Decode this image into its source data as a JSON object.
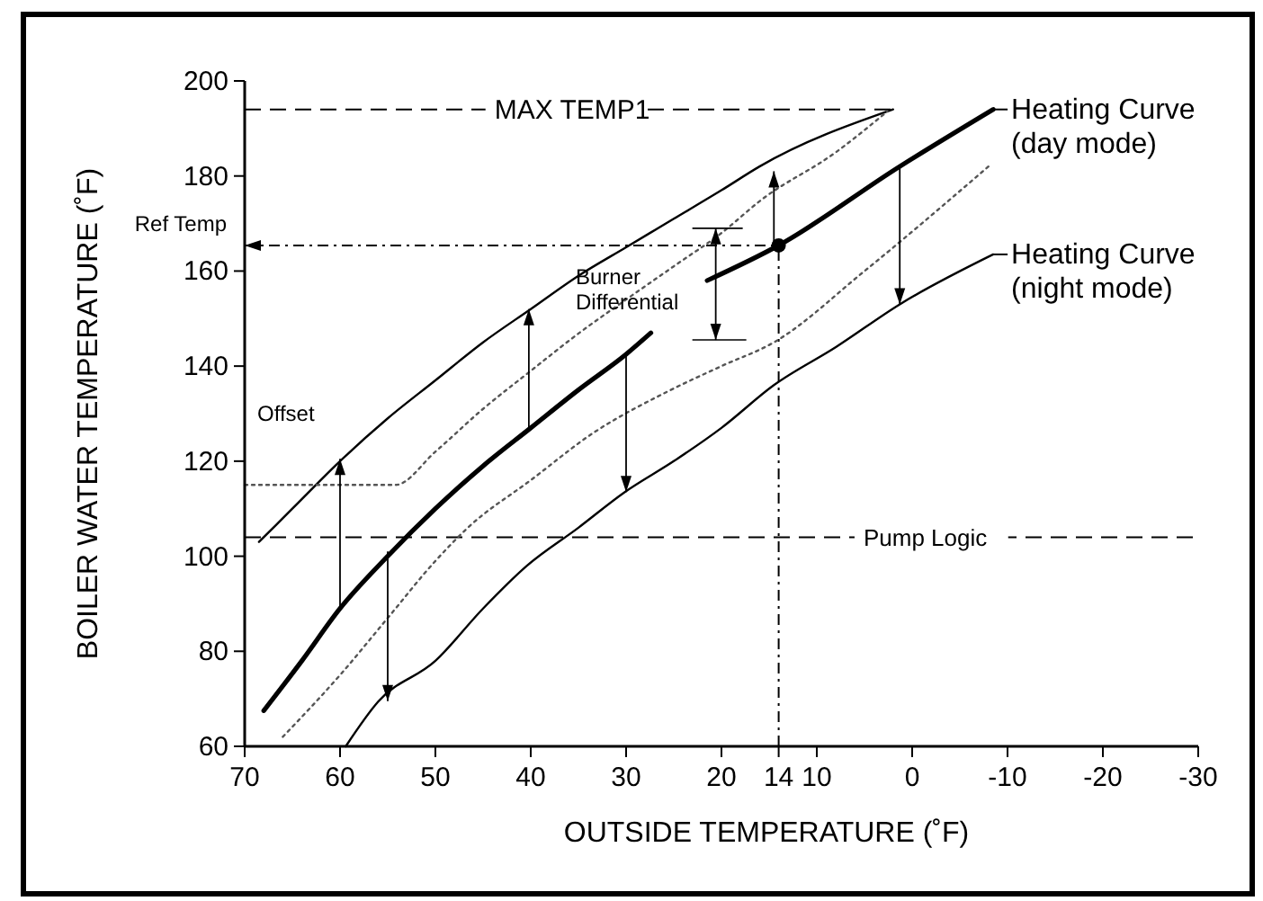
{
  "chart_data": {
    "type": "line",
    "xlabel": "OUTSIDE TEMPERATURE (˚F)",
    "ylabel": "BOILER WATER TEMPERATURE (˚F)",
    "xlim": [
      70,
      -30
    ],
    "ylim": [
      60,
      200
    ],
    "xticks": [
      70,
      60,
      50,
      40,
      30,
      20,
      14,
      10,
      0,
      -10,
      -20,
      -30
    ],
    "yticks": [
      60,
      80,
      100,
      120,
      140,
      160,
      180,
      200
    ],
    "series": [
      {
        "color": "#000000",
        "line_style": "solid",
        "x": [
          68.5,
          65,
          60,
          55,
          50,
          45,
          40,
          35,
          30,
          25,
          20,
          16,
          2
        ],
        "values": [
          103,
          110,
          120,
          129,
          137,
          145,
          152,
          159,
          165,
          171,
          177,
          182,
          194
        ]
      },
      {
        "name": "Heating Curve\n(day mode)",
        "color": "#000000",
        "line_style": "solid",
        "x": [
          68,
          64,
          60,
          55,
          50,
          45,
          40,
          35,
          30,
          27.4,
          24,
          21.5,
          14,
          1.3,
          -8.5
        ],
        "values": [
          67.5,
          78,
          89,
          100,
          110,
          119,
          127,
          135,
          142.5,
          147,
          null,
          158,
          165.4,
          182,
          194
        ]
      },
      {
        "name": "Heating Curve\n(night mode)",
        "color": "#000000",
        "line_style": "solid",
        "x": [
          59.4,
          56,
          50,
          45,
          40.4,
          35,
          30.2,
          25,
          20,
          14.5,
          8,
          1.3,
          -8.5
        ],
        "values": [
          60,
          69.4,
          78,
          89,
          98,
          106,
          113.4,
          120,
          127,
          136,
          144,
          153,
          163.5
        ]
      },
      {
        "color": "#555555",
        "line_style": "dotted",
        "x": [
          70,
          54.2,
          50,
          45,
          40,
          34.9,
          30,
          25,
          20,
          15.8,
          8,
          2.6
        ],
        "values": [
          115,
          115,
          122,
          131,
          139,
          147,
          154,
          161,
          168,
          175,
          185,
          193.6
        ]
      },
      {
        "color": "#555555",
        "line_style": "dotted",
        "x": [
          66,
          60,
          55,
          50,
          46.6,
          40,
          33.4,
          25.8,
          20,
          14.5,
          5,
          -8
        ],
        "values": [
          62,
          75,
          87,
          99,
          106,
          116,
          126,
          134.5,
          140,
          145,
          160,
          182
        ]
      },
      {
        "type": "scatter",
        "color": "#000000",
        "marker": "circle",
        "x": [
          14
        ],
        "values": [
          165.4
        ]
      }
    ],
    "ref_lines": [
      {
        "axis": "y",
        "value": 194,
        "line_style": "dashed"
      },
      {
        "axis": "y",
        "value": 104,
        "line_style": "dashed"
      },
      {
        "axis": "y",
        "value": 165.4,
        "label": "Ref Temp",
        "line_style": "dotted"
      },
      {
        "axis": "x",
        "value": 14,
        "line_style": "dotted"
      }
    ],
    "annotations": [
      {
        "text": "MAX TEMP1",
        "x": 43.8,
        "y": 194
      },
      {
        "text": "Pump Logic",
        "x": 5.1,
        "y": 104
      },
      "Offset",
      "Burner\nDifferential"
    ],
    "legend": "right"
  }
}
